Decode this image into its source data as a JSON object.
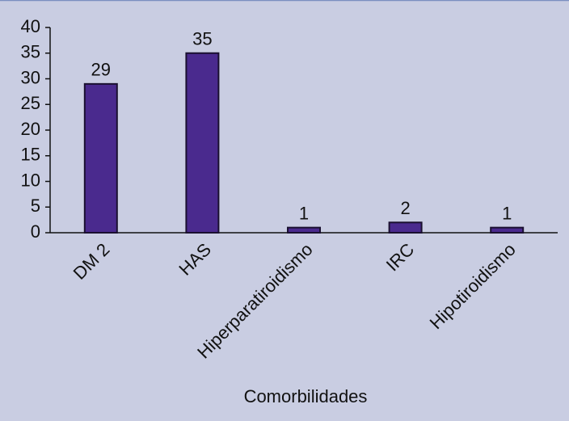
{
  "chart_data": {
    "type": "bar",
    "xlabel": "Comorbilidades",
    "categories": [
      "DM 2",
      "HAS",
      "Hiperparatiroidismo",
      "IRC",
      "Hipotiroidismo"
    ],
    "values": [
      29,
      35,
      1,
      2,
      1
    ],
    "color": "#4a2a8e",
    "ylim": [
      0,
      40
    ],
    "yticks": [
      0,
      5,
      10,
      15,
      20,
      25,
      30,
      35,
      40
    ],
    "value_labels_shown": true
  }
}
